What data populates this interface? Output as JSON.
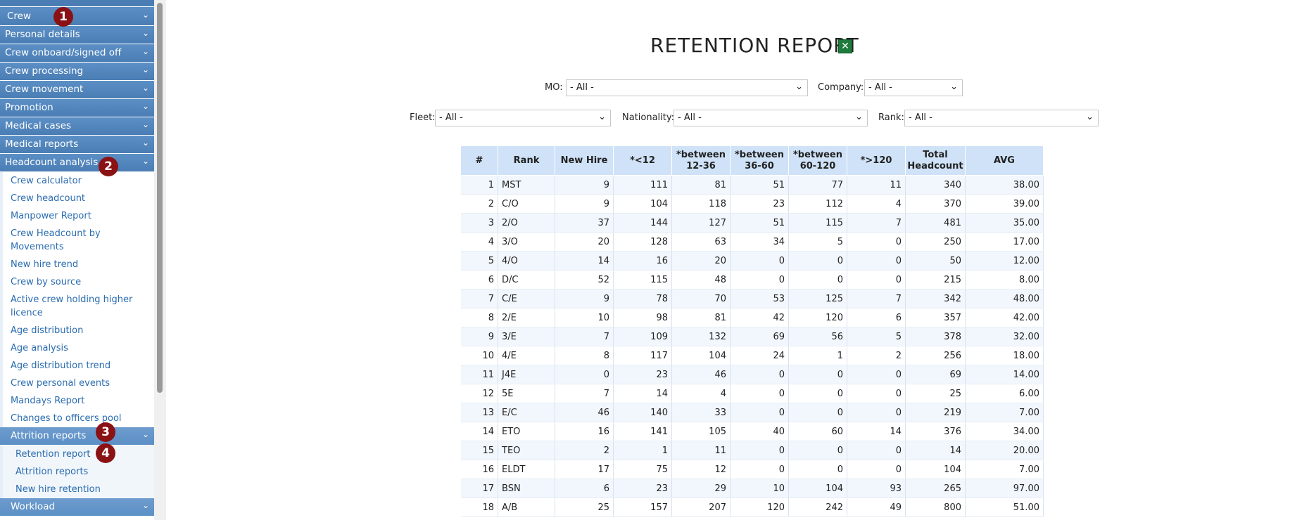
{
  "sidebar": {
    "crew_header": "Crew",
    "groups": [
      {
        "label": "Personal details"
      },
      {
        "label": "Crew onboard/signed off"
      },
      {
        "label": "Crew processing"
      },
      {
        "label": "Crew movement"
      },
      {
        "label": "Promotion"
      },
      {
        "label": "Medical cases"
      },
      {
        "label": "Medical reports"
      },
      {
        "label": "Headcount analysis"
      }
    ],
    "headcount_items": [
      {
        "label": "Crew calculator"
      },
      {
        "label": "Crew headcount"
      },
      {
        "label": "Manpower Report"
      },
      {
        "label": "Crew Headcount by Movements"
      },
      {
        "label": "New hire trend"
      },
      {
        "label": "Crew by source"
      },
      {
        "label": "Active crew holding higher licence"
      },
      {
        "label": "Age distribution"
      },
      {
        "label": "Age analysis"
      },
      {
        "label": "Age distribution trend"
      },
      {
        "label": "Crew personal events"
      },
      {
        "label": "Mandays Report"
      },
      {
        "label": "Changes to officers pool"
      }
    ],
    "attrition_header": "Attrition reports",
    "attrition_items": [
      {
        "label": "Retention report"
      },
      {
        "label": "Attrition reports"
      },
      {
        "label": "New hire retention"
      }
    ],
    "workload_header": "Workload",
    "badges": [
      "1",
      "2",
      "3",
      "4"
    ],
    "chevron": "⌄"
  },
  "main": {
    "title": "RETENTION REPORT",
    "export_icon": "excel-icon",
    "filters": {
      "mo_label": "MO:",
      "mo_value": "- All -",
      "company_label": "Company:",
      "company_value": "- All -",
      "fleet_label": "Fleet:",
      "fleet_value": "- All -",
      "nationality_label": "Nationality:",
      "nationality_value": "- All -",
      "rank_label": "Rank:",
      "rank_value": "- All -"
    },
    "table": {
      "headers": [
        "#",
        "Rank",
        "New Hire",
        "*<12",
        "*between 12-36",
        "*between 36-60",
        "*between 60-120",
        "*>120",
        "Total Headcount",
        "AVG"
      ],
      "rows": [
        [
          "1",
          "MST",
          "9",
          "111",
          "81",
          "51",
          "77",
          "11",
          "340",
          "38.00"
        ],
        [
          "2",
          "C/O",
          "9",
          "104",
          "118",
          "23",
          "112",
          "4",
          "370",
          "39.00"
        ],
        [
          "3",
          "2/O",
          "37",
          "144",
          "127",
          "51",
          "115",
          "7",
          "481",
          "35.00"
        ],
        [
          "4",
          "3/O",
          "20",
          "128",
          "63",
          "34",
          "5",
          "0",
          "250",
          "17.00"
        ],
        [
          "5",
          "4/O",
          "14",
          "16",
          "20",
          "0",
          "0",
          "0",
          "50",
          "12.00"
        ],
        [
          "6",
          "D/C",
          "52",
          "115",
          "48",
          "0",
          "0",
          "0",
          "215",
          "8.00"
        ],
        [
          "7",
          "C/E",
          "9",
          "78",
          "70",
          "53",
          "125",
          "7",
          "342",
          "48.00"
        ],
        [
          "8",
          "2/E",
          "10",
          "98",
          "81",
          "42",
          "120",
          "6",
          "357",
          "42.00"
        ],
        [
          "9",
          "3/E",
          "7",
          "109",
          "132",
          "69",
          "56",
          "5",
          "378",
          "32.00"
        ],
        [
          "10",
          "4/E",
          "8",
          "117",
          "104",
          "24",
          "1",
          "2",
          "256",
          "18.00"
        ],
        [
          "11",
          "J4E",
          "0",
          "23",
          "46",
          "0",
          "0",
          "0",
          "69",
          "14.00"
        ],
        [
          "12",
          "5E",
          "7",
          "14",
          "4",
          "0",
          "0",
          "0",
          "25",
          "6.00"
        ],
        [
          "13",
          "E/C",
          "46",
          "140",
          "33",
          "0",
          "0",
          "0",
          "219",
          "7.00"
        ],
        [
          "14",
          "ETO",
          "16",
          "141",
          "105",
          "40",
          "60",
          "14",
          "376",
          "34.00"
        ],
        [
          "15",
          "TEO",
          "2",
          "1",
          "11",
          "0",
          "0",
          "0",
          "14",
          "20.00"
        ],
        [
          "16",
          "ELDT",
          "17",
          "75",
          "12",
          "0",
          "0",
          "0",
          "104",
          "7.00"
        ],
        [
          "17",
          "BSN",
          "6",
          "23",
          "29",
          "10",
          "104",
          "93",
          "265",
          "97.00"
        ],
        [
          "18",
          "A/B",
          "25",
          "157",
          "207",
          "120",
          "242",
          "49",
          "800",
          "51.00"
        ]
      ]
    }
  }
}
